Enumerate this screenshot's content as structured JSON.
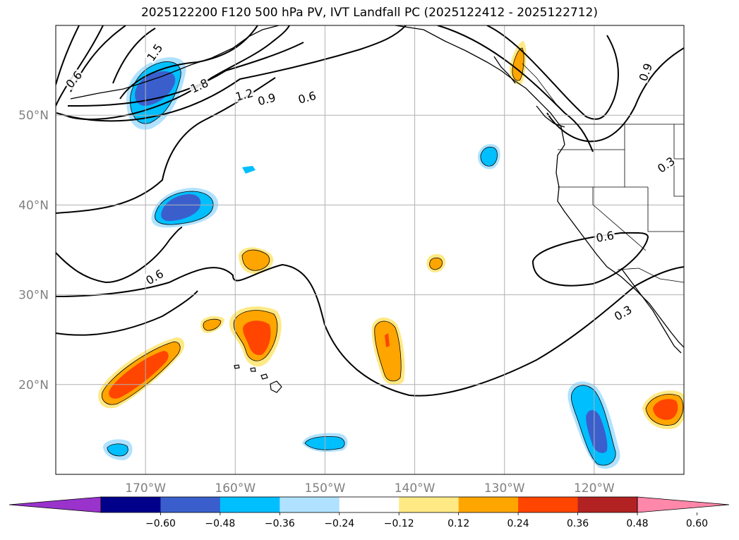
{
  "title": "2025122200 F120 500 hPa PV, IVT Landfall PC (2025122412 - 2025122712)",
  "projection": "PlateCarree",
  "grid": true,
  "map_extent": {
    "lon": [
      -180,
      -110
    ],
    "lat": [
      10,
      60
    ]
  },
  "lon_ticks": [
    {
      "lon": -170,
      "label": "170°W"
    },
    {
      "lon": -160,
      "label": "160°W"
    },
    {
      "lon": -150,
      "label": "150°W"
    },
    {
      "lon": -140,
      "label": "140°W"
    },
    {
      "lon": -130,
      "label": "130°W"
    },
    {
      "lon": -120,
      "label": "120°W"
    }
  ],
  "lat_ticks": [
    {
      "lat": 20,
      "label": "20°N"
    },
    {
      "lat": 30,
      "label": "30°N"
    },
    {
      "lat": 40,
      "label": "40°N"
    },
    {
      "lat": 50,
      "label": "50°N"
    }
  ],
  "contour_labels": [
    {
      "text": "1.5",
      "lon": -169.0,
      "lat": 57.0,
      "rot": -55
    },
    {
      "text": "0.6",
      "lon": -178.0,
      "lat": 54.0,
      "rot": -50
    },
    {
      "text": "1.8",
      "lon": -164.0,
      "lat": 53.3,
      "rot": -25
    },
    {
      "text": "1.2",
      "lon": -159.0,
      "lat": 52.3,
      "rot": -15
    },
    {
      "text": "0.9",
      "lon": -156.5,
      "lat": 51.8,
      "rot": -15
    },
    {
      "text": "0.6",
      "lon": -152.0,
      "lat": 52.0,
      "rot": -15
    },
    {
      "text": "0.9",
      "lon": -114.3,
      "lat": 54.8,
      "rot": -70
    },
    {
      "text": "0.3",
      "lon": -112.0,
      "lat": 44.5,
      "rot": -35
    },
    {
      "text": "0.6",
      "lon": -169.0,
      "lat": 32.0,
      "rot": -30
    },
    {
      "text": "0.6",
      "lon": -118.8,
      "lat": 36.5,
      "rot": -10
    },
    {
      "text": "0.3",
      "lon": -116.8,
      "lat": 28.0,
      "rot": -30
    }
  ],
  "colorbar": {
    "tick_labels": [
      "−0.60",
      "−0.48",
      "−0.36",
      "−0.24",
      "−0.12",
      "0.12",
      "0.24",
      "0.36",
      "0.48",
      "0.60"
    ],
    "colors": [
      "#9933cc",
      "#00008b",
      "#3a5fcd",
      "#00bfff",
      "#b0e2ff",
      "#ffffff",
      "#ffe985",
      "#ffa500",
      "#ff4500",
      "#b22222",
      "#ff88aa"
    ]
  },
  "colors": {
    "land_line": "#000000",
    "grid": "#b0b0b0"
  }
}
